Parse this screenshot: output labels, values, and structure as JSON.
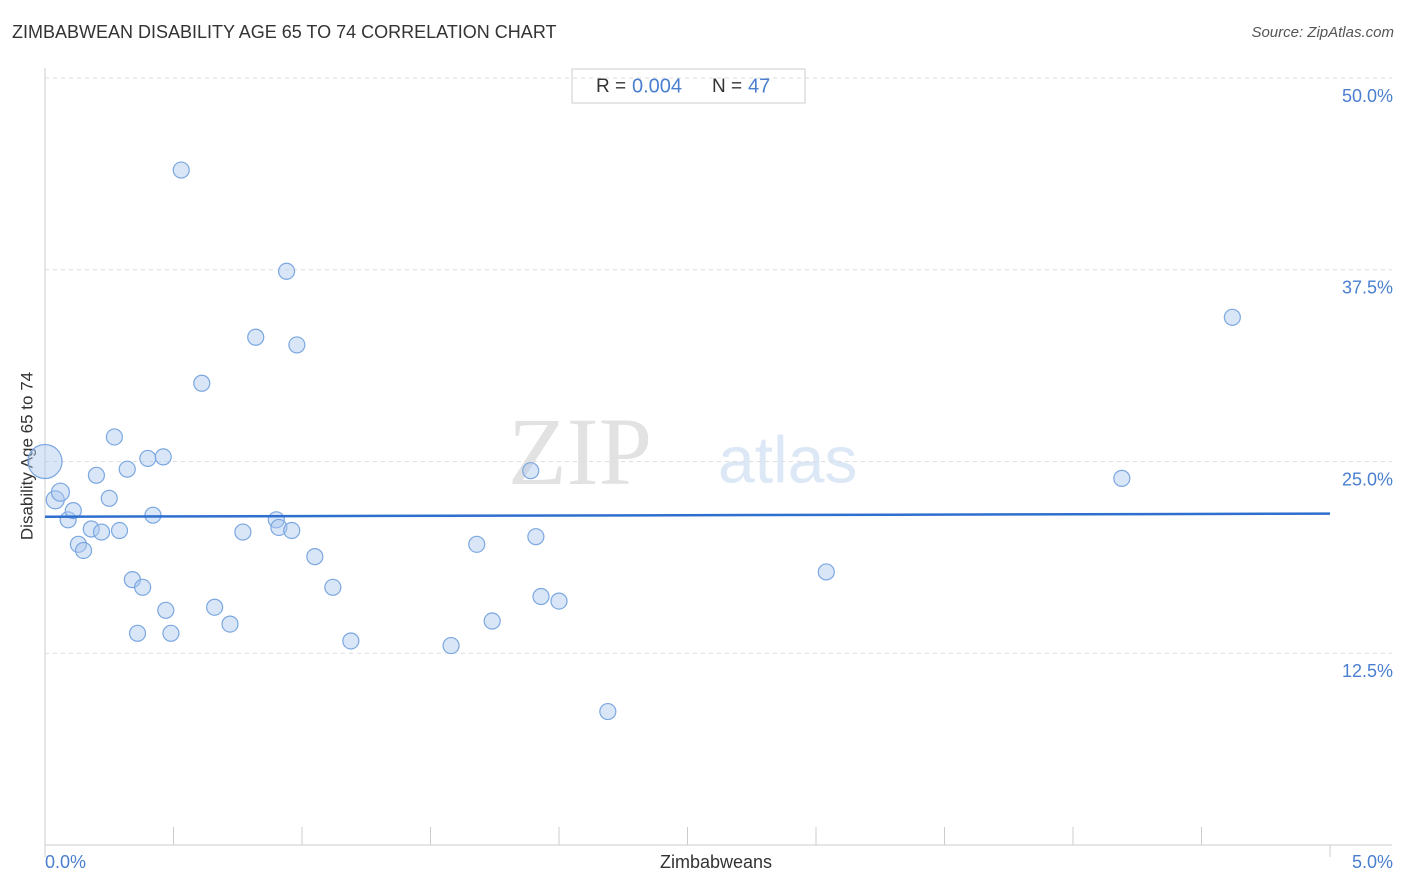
{
  "chart_data": {
    "type": "scatter",
    "title": "ZIMBABWEAN DISABILITY AGE 65 TO 74 CORRELATION CHART",
    "source": "Source: ZipAtlas.com",
    "x_label": "Zimbabweans",
    "y_label": "Disability Age 65 to 74",
    "watermark": [
      "ZIP",
      "atlas"
    ],
    "stats": {
      "r_label": "R =",
      "r": 0.004,
      "n_label": "N =",
      "n": 47
    },
    "color": "#7ba7e0",
    "trend_color": "#2f6fcf",
    "xlim": [
      0,
      5
    ],
    "ylim": [
      0,
      50
    ],
    "xticks": [
      {
        "value": 0,
        "label": "0.0%"
      },
      {
        "value": 5,
        "label": "5.0%"
      }
    ],
    "xminor": [
      0.5,
      1,
      1.5,
      2,
      2.5,
      3,
      3.5,
      4,
      4.5
    ],
    "yticks": [
      {
        "value": 12.5,
        "label": "12.5%"
      },
      {
        "value": 25,
        "label": "25.0%"
      },
      {
        "value": 37.5,
        "label": "37.5%"
      },
      {
        "value": 50,
        "label": "50.0%"
      }
    ],
    "grid": true,
    "x": [
      0,
      0.04,
      0.06,
      0.09,
      0.11,
      0.13,
      0.15,
      0.18,
      0.2,
      0.22,
      0.25,
      0.27,
      0.29,
      0.32,
      0.34,
      0.36,
      0.38,
      0.4,
      0.42,
      0.46,
      0.47,
      0.49,
      0.53,
      0.61,
      0.66,
      0.72,
      0.77,
      0.82,
      0.9,
      0.91,
      0.94,
      0.96,
      0.98,
      1.05,
      1.12,
      1.19,
      1.58,
      1.68,
      1.74,
      1.89,
      1.91,
      1.93,
      2.0,
      2.19,
      3.04,
      4.19,
      4.62
    ],
    "values": [
      25.0,
      22.5,
      23.0,
      21.2,
      21.8,
      19.6,
      19.2,
      20.6,
      24.1,
      20.4,
      22.6,
      26.6,
      20.5,
      24.5,
      17.3,
      13.8,
      16.8,
      25.2,
      21.5,
      25.3,
      15.3,
      13.8,
      44.0,
      30.1,
      15.5,
      14.4,
      20.4,
      33.1,
      21.2,
      20.7,
      37.4,
      20.5,
      32.6,
      18.8,
      16.8,
      13.3,
      13.0,
      19.6,
      14.6,
      24.4,
      20.1,
      16.2,
      15.9,
      8.7,
      17.8,
      23.9,
      34.4
    ],
    "sizes": [
      17,
      9,
      9,
      8,
      8,
      8,
      8,
      8,
      8,
      8,
      8,
      8,
      8,
      8,
      8,
      8,
      8,
      8,
      8,
      8,
      8,
      8,
      8,
      8,
      8,
      8,
      8,
      8,
      8,
      8,
      8,
      8,
      8,
      8,
      8,
      8,
      8,
      8,
      8,
      8,
      8,
      8,
      8,
      8,
      8,
      8,
      8
    ],
    "trendline": {
      "x": [
        0,
        5
      ],
      "y": [
        21.4,
        21.6
      ]
    }
  }
}
